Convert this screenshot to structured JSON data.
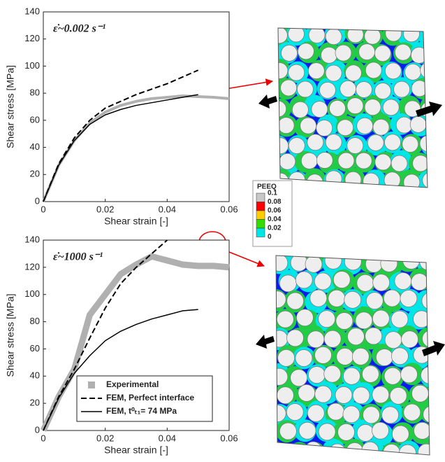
{
  "chart_data": [
    {
      "type": "line",
      "annotation": "ε̇~0.002 s⁻¹",
      "x_label": "Shear strain [-]",
      "y_label": "Shear stress [MPa]",
      "x": [
        0,
        0.005,
        0.01,
        0.015,
        0.02,
        0.025,
        0.03,
        0.035,
        0.04,
        0.045,
        0.05,
        0.055,
        0.06
      ],
      "xlim": [
        0,
        0.06
      ],
      "xticks": [
        0,
        0.02,
        0.04,
        0.06
      ],
      "ylim": [
        0,
        140
      ],
      "yticks": [
        0,
        20,
        40,
        60,
        80,
        100,
        120,
        140
      ],
      "series": [
        {
          "color": "#b0b0b0",
          "width": 4,
          "dash": false,
          "values": [
            0,
            27,
            45,
            58,
            66,
            71,
            74,
            76,
            77,
            78,
            77.5,
            77,
            76
          ]
        },
        {
          "color": "#000000",
          "width": 2,
          "dash": true,
          "values": [
            0,
            28,
            47,
            60,
            69,
            74,
            79,
            83,
            87,
            92,
            97,
            null,
            null
          ]
        },
        {
          "color": "#000000",
          "width": 1.5,
          "dash": false,
          "values": [
            0,
            27,
            45,
            57,
            64,
            68,
            71,
            73,
            75,
            77,
            79,
            null,
            null
          ]
        }
      ]
    },
    {
      "type": "line",
      "annotation": "ε̇~1000 s⁻¹",
      "x_label": "Shear strain [-]",
      "y_label": "Shear stress [MPa]",
      "x": [
        0,
        0.005,
        0.01,
        0.015,
        0.02,
        0.025,
        0.03,
        0.035,
        0.04,
        0.045,
        0.05,
        0.055,
        0.06
      ],
      "xlim": [
        0,
        0.06
      ],
      "xticks": [
        0,
        0.02,
        0.04,
        0.06
      ],
      "ylim": [
        0,
        140
      ],
      "yticks": [
        0,
        20,
        40,
        60,
        80,
        100,
        120,
        140
      ],
      "series": [
        {
          "name": "Experimental",
          "color": "#b0b0b0",
          "width": 9,
          "dash": false,
          "values": [
            0,
            25,
            45,
            85,
            100,
            115,
            122,
            128,
            125,
            122,
            121,
            121,
            120
          ]
        },
        {
          "name": "FEM, Perfect interface",
          "color": "#000000",
          "width": 2,
          "dash": true,
          "values": [
            0,
            25,
            45,
            68,
            90,
            108,
            120,
            130,
            140,
            null,
            null,
            null,
            null
          ]
        },
        {
          "name": "FEM, t⁰ₜ₁= 74 MPa",
          "color": "#000000",
          "width": 1.5,
          "dash": false,
          "values": [
            0,
            24,
            42,
            55,
            66,
            73,
            78,
            82,
            85,
            88,
            89,
            null,
            null
          ]
        }
      ]
    }
  ],
  "colorbar": {
    "title": "PEEQ",
    "levels": [
      0.1,
      0.08,
      0.06,
      0.04,
      0.02,
      0
    ],
    "colors": [
      "#c8c8c8",
      "#ff0000",
      "#ffcc00",
      "#33dd00",
      "#00e5e5",
      "#0000ff"
    ]
  }
}
